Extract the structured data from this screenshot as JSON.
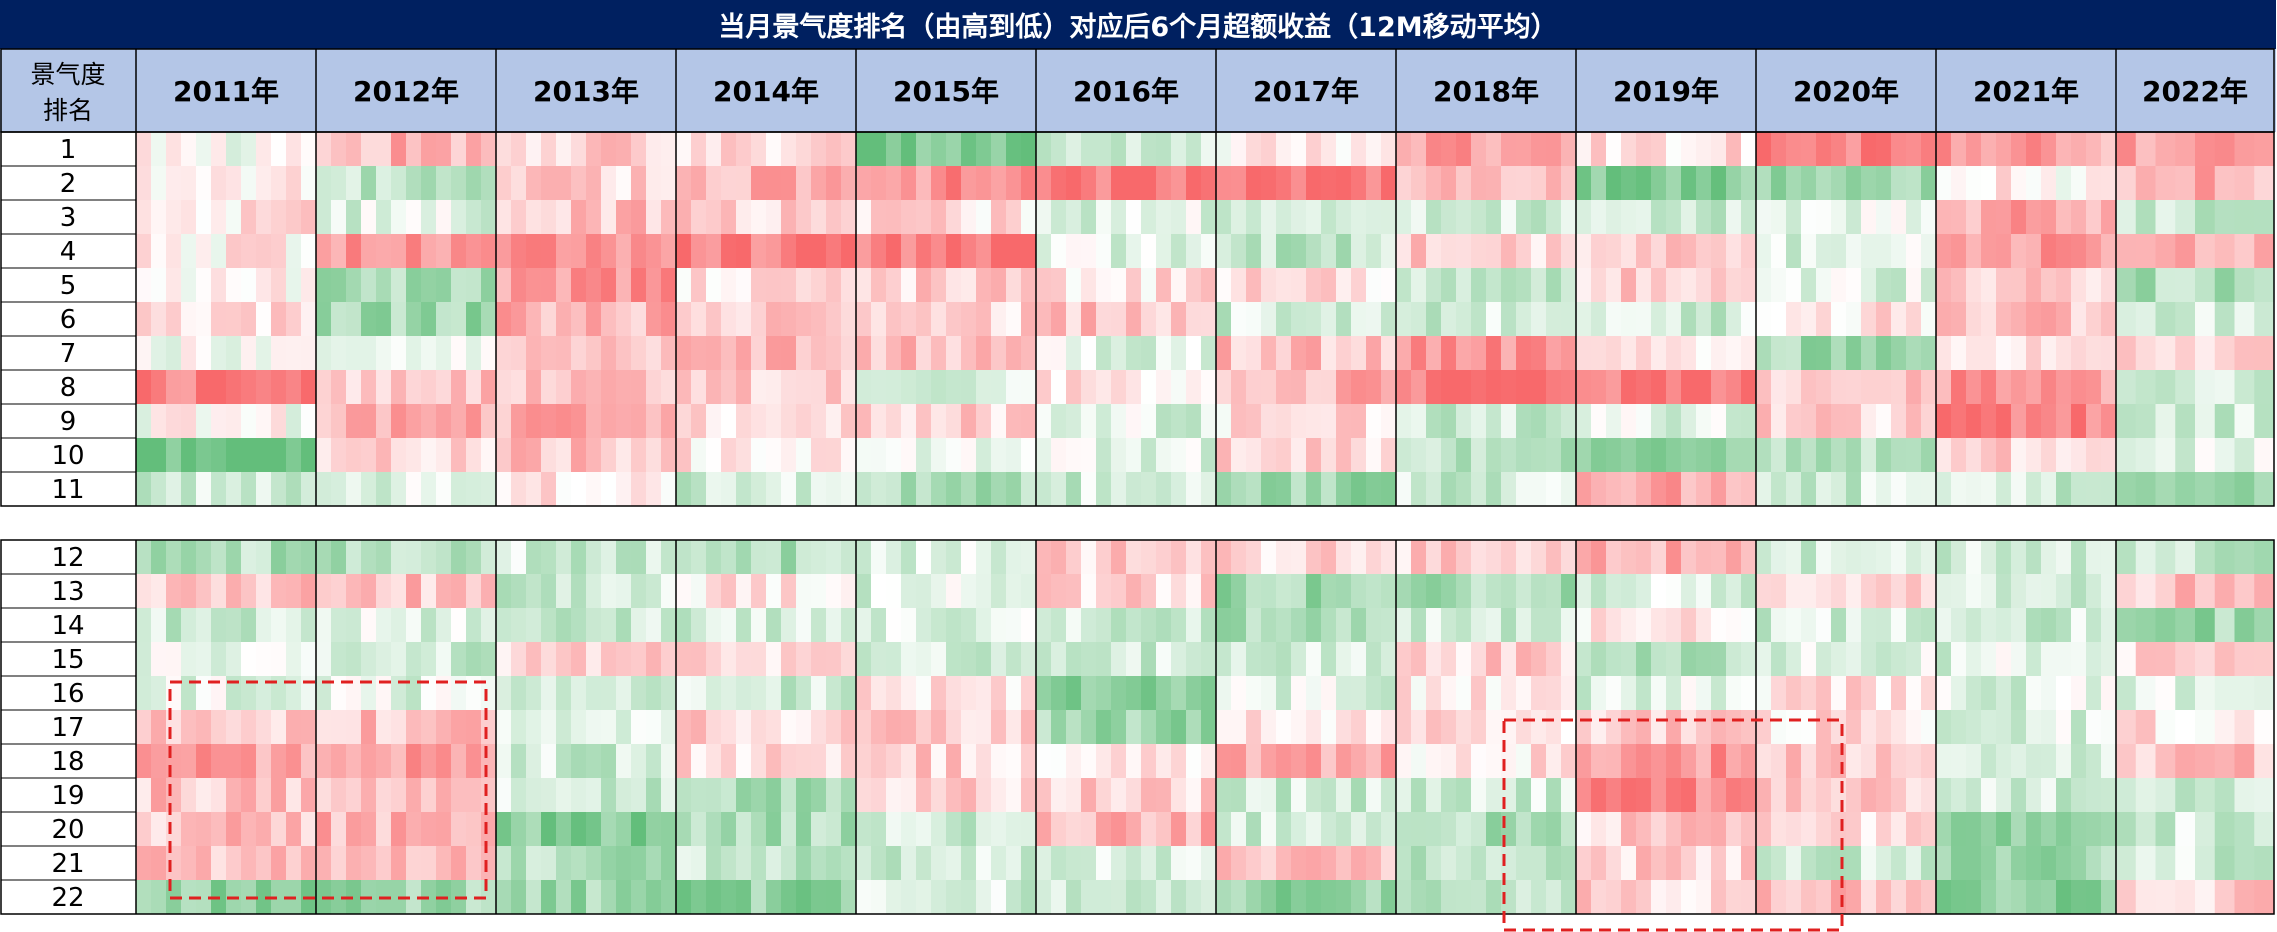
{
  "chart_data": {
    "type": "heatmap",
    "title": "当月景气度排名（由高到低）对应后6个月超额收益（12M移动平均）",
    "row_header": [
      "景气度",
      "排名"
    ],
    "columns": [
      "2011年",
      "2012年",
      "2013年",
      "2014年",
      "2015年",
      "2016年",
      "2017年",
      "2018年",
      "2019年",
      "2020年",
      "2021年",
      "2022年"
    ],
    "months_per_year": [
      12,
      12,
      12,
      12,
      12,
      12,
      12,
      12,
      12,
      12,
      12,
      8
    ],
    "rows_top": [
      "1",
      "2",
      "3",
      "4",
      "5",
      "6",
      "7",
      "8",
      "9",
      "10",
      "11"
    ],
    "rows_bottom": [
      "12",
      "13",
      "14",
      "15",
      "16",
      "17",
      "18",
      "19",
      "20",
      "21",
      "22"
    ],
    "color_scale": {
      "negative": "#63be7b",
      "zero": "#ffffff",
      "positive": "#f8696b"
    },
    "highlight_boxes": [
      {
        "years": [
          "2011年",
          "2012年"
        ],
        "ranks": [
          "16",
          "22"
        ],
        "color": "#e02020"
      },
      {
        "years": [
          "2018年",
          "2020年"
        ],
        "ranks": [
          "17",
          "22"
        ],
        "color": "#e02020"
      }
    ],
    "colors": {
      "title_bar": "#002060",
      "header_fill": "#b4c6e7",
      "grid_line": "#000000"
    }
  }
}
